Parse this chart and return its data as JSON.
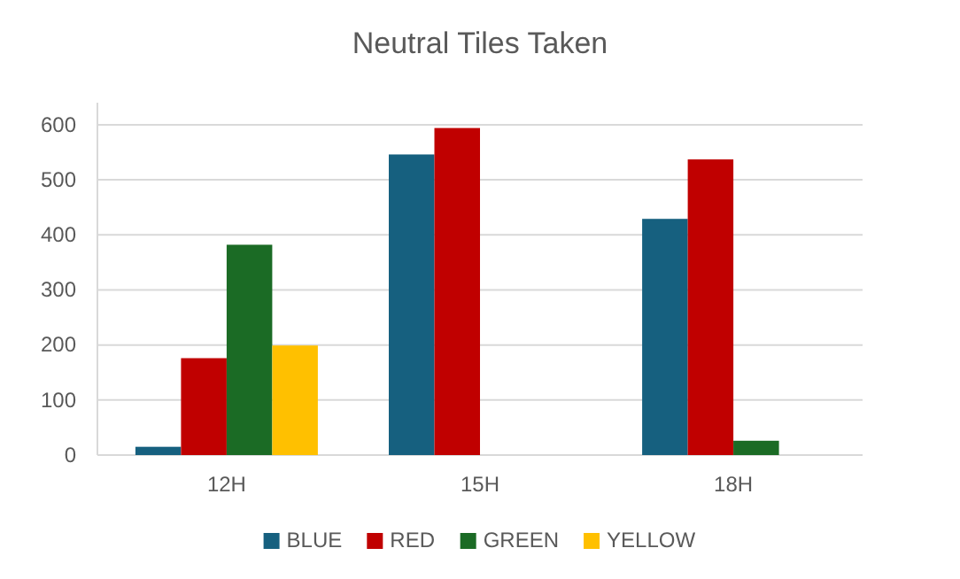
{
  "chart_data": {
    "type": "bar",
    "title": "Neutral Tiles Taken",
    "categories": [
      "12H",
      "15H",
      "18H"
    ],
    "series": [
      {
        "name": "BLUE",
        "color": "#16607f",
        "values": [
          15,
          546,
          429
        ]
      },
      {
        "name": "RED",
        "color": "#c00000",
        "values": [
          176,
          594,
          537
        ]
      },
      {
        "name": "GREEN",
        "color": "#1b6b25",
        "values": [
          382,
          0,
          26
        ]
      },
      {
        "name": "YELLOW",
        "color": "#ffc000",
        "values": [
          199,
          0,
          0
        ]
      }
    ],
    "ylim": [
      0,
      640
    ],
    "yticks": [
      0,
      100,
      200,
      300,
      400,
      500,
      600
    ],
    "grid": "y",
    "legend": "bottom"
  }
}
